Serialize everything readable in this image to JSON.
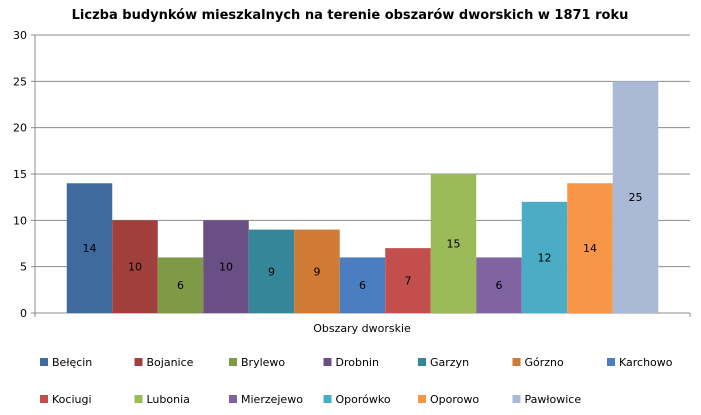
{
  "chart_data": {
    "type": "bar",
    "title": "Liczba budynków mieszkalnych na terenie obszarów dworskich w 1871 roku",
    "xlabel": "Obszary dworskie",
    "ylabel": "",
    "ylim": [
      0,
      30
    ],
    "yticks": [
      0,
      5,
      10,
      15,
      20,
      25,
      30
    ],
    "grid": true,
    "legend_position": "bottom",
    "series": [
      {
        "name": "Bełęcin",
        "value": 14,
        "color": "#3e6a9e"
      },
      {
        "name": "Bojanice",
        "value": 10,
        "color": "#a13f3c"
      },
      {
        "name": "Brylewo",
        "value": 6,
        "color": "#7f9a45"
      },
      {
        "name": "Drobnin",
        "value": 10,
        "color": "#6a4f85"
      },
      {
        "name": "Garzyn",
        "value": 9,
        "color": "#348698"
      },
      {
        "name": "Górzno",
        "value": 9,
        "color": "#d07b35"
      },
      {
        "name": "Karchowo",
        "value": 6,
        "color": "#4a7ec0"
      },
      {
        "name": "Kociugi",
        "value": 7,
        "color": "#c24f4c"
      },
      {
        "name": "Lubonia",
        "value": 15,
        "color": "#9bbb59"
      },
      {
        "name": "Mierzejewo",
        "value": 6,
        "color": "#8064a2"
      },
      {
        "name": "Oporówko",
        "value": 12,
        "color": "#4bacc6"
      },
      {
        "name": "Oporowo",
        "value": 14,
        "color": "#f79646"
      },
      {
        "name": "Pawłowice",
        "value": 25,
        "color": "#a9b9d6"
      }
    ]
  }
}
